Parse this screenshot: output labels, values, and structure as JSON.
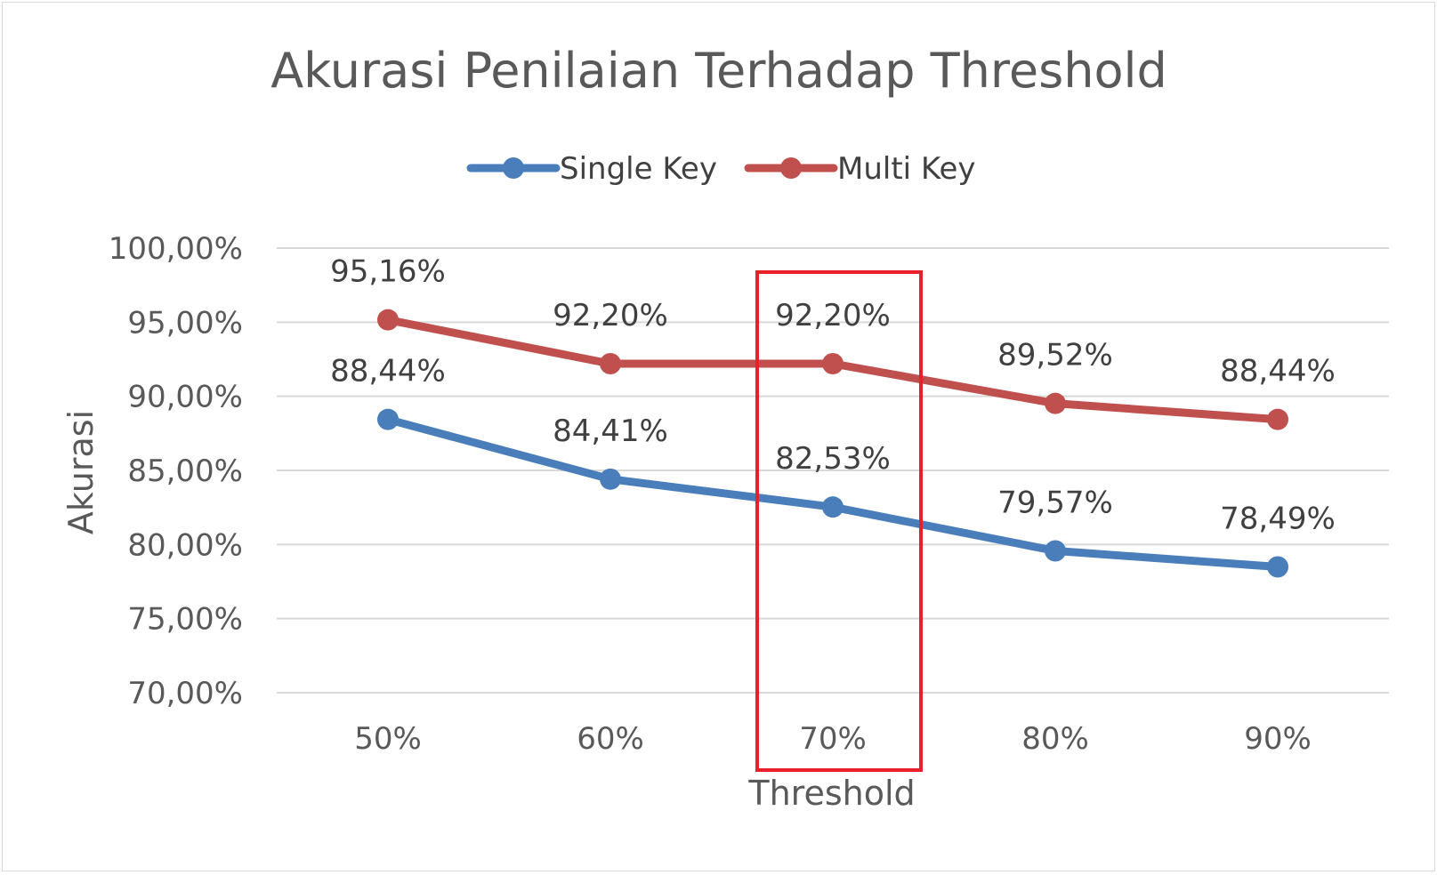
{
  "chart_data": {
    "type": "line",
    "title": "Akurasi Penilaian Terhadap Threshold",
    "xlabel": "Threshold",
    "ylabel": "Akurasi",
    "categories": [
      "50%",
      "60%",
      "70%",
      "80%",
      "90%"
    ],
    "ylim": [
      70,
      100
    ],
    "yticks": [
      "70,00%",
      "75,00%",
      "80,00%",
      "85,00%",
      "90,00%",
      "95,00%",
      "100,00%"
    ],
    "grid": true,
    "legend_position": "top",
    "series": [
      {
        "name": "Single Key",
        "color": "#4a7ebb",
        "values": [
          88.44,
          84.41,
          82.53,
          79.57,
          78.49
        ],
        "labels": [
          "88,44%",
          "84,41%",
          "82,53%",
          "79,57%",
          "78,49%"
        ]
      },
      {
        "name": "Multi Key",
        "color": "#c0504d",
        "values": [
          95.16,
          92.2,
          92.2,
          89.52,
          88.44
        ],
        "labels": [
          "95,16%",
          "92,20%",
          "92,20%",
          "89,52%",
          "88,44%"
        ]
      }
    ],
    "annotations": [
      {
        "type": "highlight-box",
        "category": "70%",
        "color": "#e8202a"
      }
    ]
  }
}
